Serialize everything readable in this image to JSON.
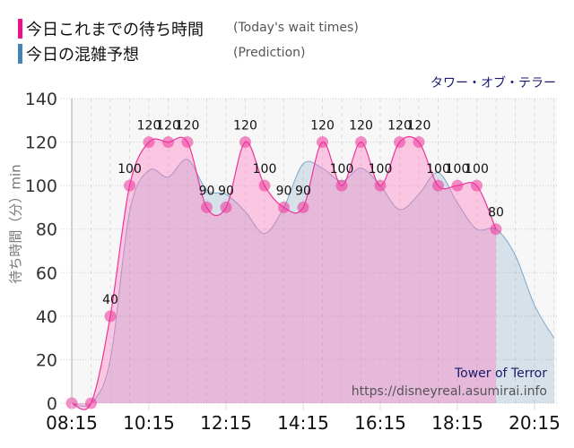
{
  "legend": [
    {
      "label_jp": "今日これまでの待ち時間",
      "label_en": "(Today's wait times)",
      "color": "#ee1188"
    },
    {
      "label_jp": "今日の混雑予想",
      "label_en": "(Prediction)",
      "color": "#4682b4"
    }
  ],
  "attraction_jp": "タワー・オブ・テラー",
  "watermark": {
    "title": "Tower of Terror",
    "url": "https://disneyreal.asumirai.info"
  },
  "chart_data": {
    "type": "area",
    "title": "タワー・オブ・テラー",
    "ylabel": "待ち時間（分）min",
    "xlabel": "",
    "ylim": [
      0,
      140
    ],
    "yticks": [
      0,
      20,
      40,
      60,
      80,
      100,
      120,
      140
    ],
    "xticks": [
      "08:15",
      "10:15",
      "12:15",
      "14:15",
      "16:15",
      "18:15",
      "20:15"
    ],
    "grid": true,
    "legend_position": "top-left",
    "series": [
      {
        "name": "今日これまでの待ち時間 (Today's wait times)",
        "color": "#ee1188",
        "x": [
          "08:15",
          "08:45",
          "09:15",
          "09:45",
          "10:15",
          "10:45",
          "11:15",
          "11:45",
          "12:15",
          "12:45",
          "13:15",
          "13:45",
          "14:15",
          "14:45",
          "15:15",
          "15:45",
          "16:15",
          "16:45",
          "17:15",
          "17:45",
          "18:15",
          "18:45",
          "19:15"
        ],
        "values": [
          0,
          0,
          40,
          100,
          120,
          120,
          120,
          90,
          90,
          120,
          100,
          90,
          90,
          120,
          100,
          120,
          100,
          120,
          120,
          100,
          100,
          100,
          80
        ]
      },
      {
        "name": "今日の混雑予想 (Prediction)",
        "color": "#4682b4",
        "x": [
          "08:15",
          "08:45",
          "09:15",
          "09:45",
          "10:15",
          "10:45",
          "11:15",
          "11:45",
          "12:15",
          "12:45",
          "13:15",
          "13:45",
          "14:15",
          "14:45",
          "15:15",
          "15:45",
          "16:15",
          "16:45",
          "17:15",
          "17:45",
          "18:15",
          "18:45",
          "19:15",
          "19:45",
          "20:15",
          "20:45"
        ],
        "values": [
          0,
          0,
          20,
          88,
          107,
          104,
          112,
          98,
          96,
          88,
          78,
          90,
          110,
          108,
          102,
          108,
          100,
          89,
          96,
          106,
          92,
          80,
          80,
          68,
          45,
          30
        ]
      }
    ]
  }
}
